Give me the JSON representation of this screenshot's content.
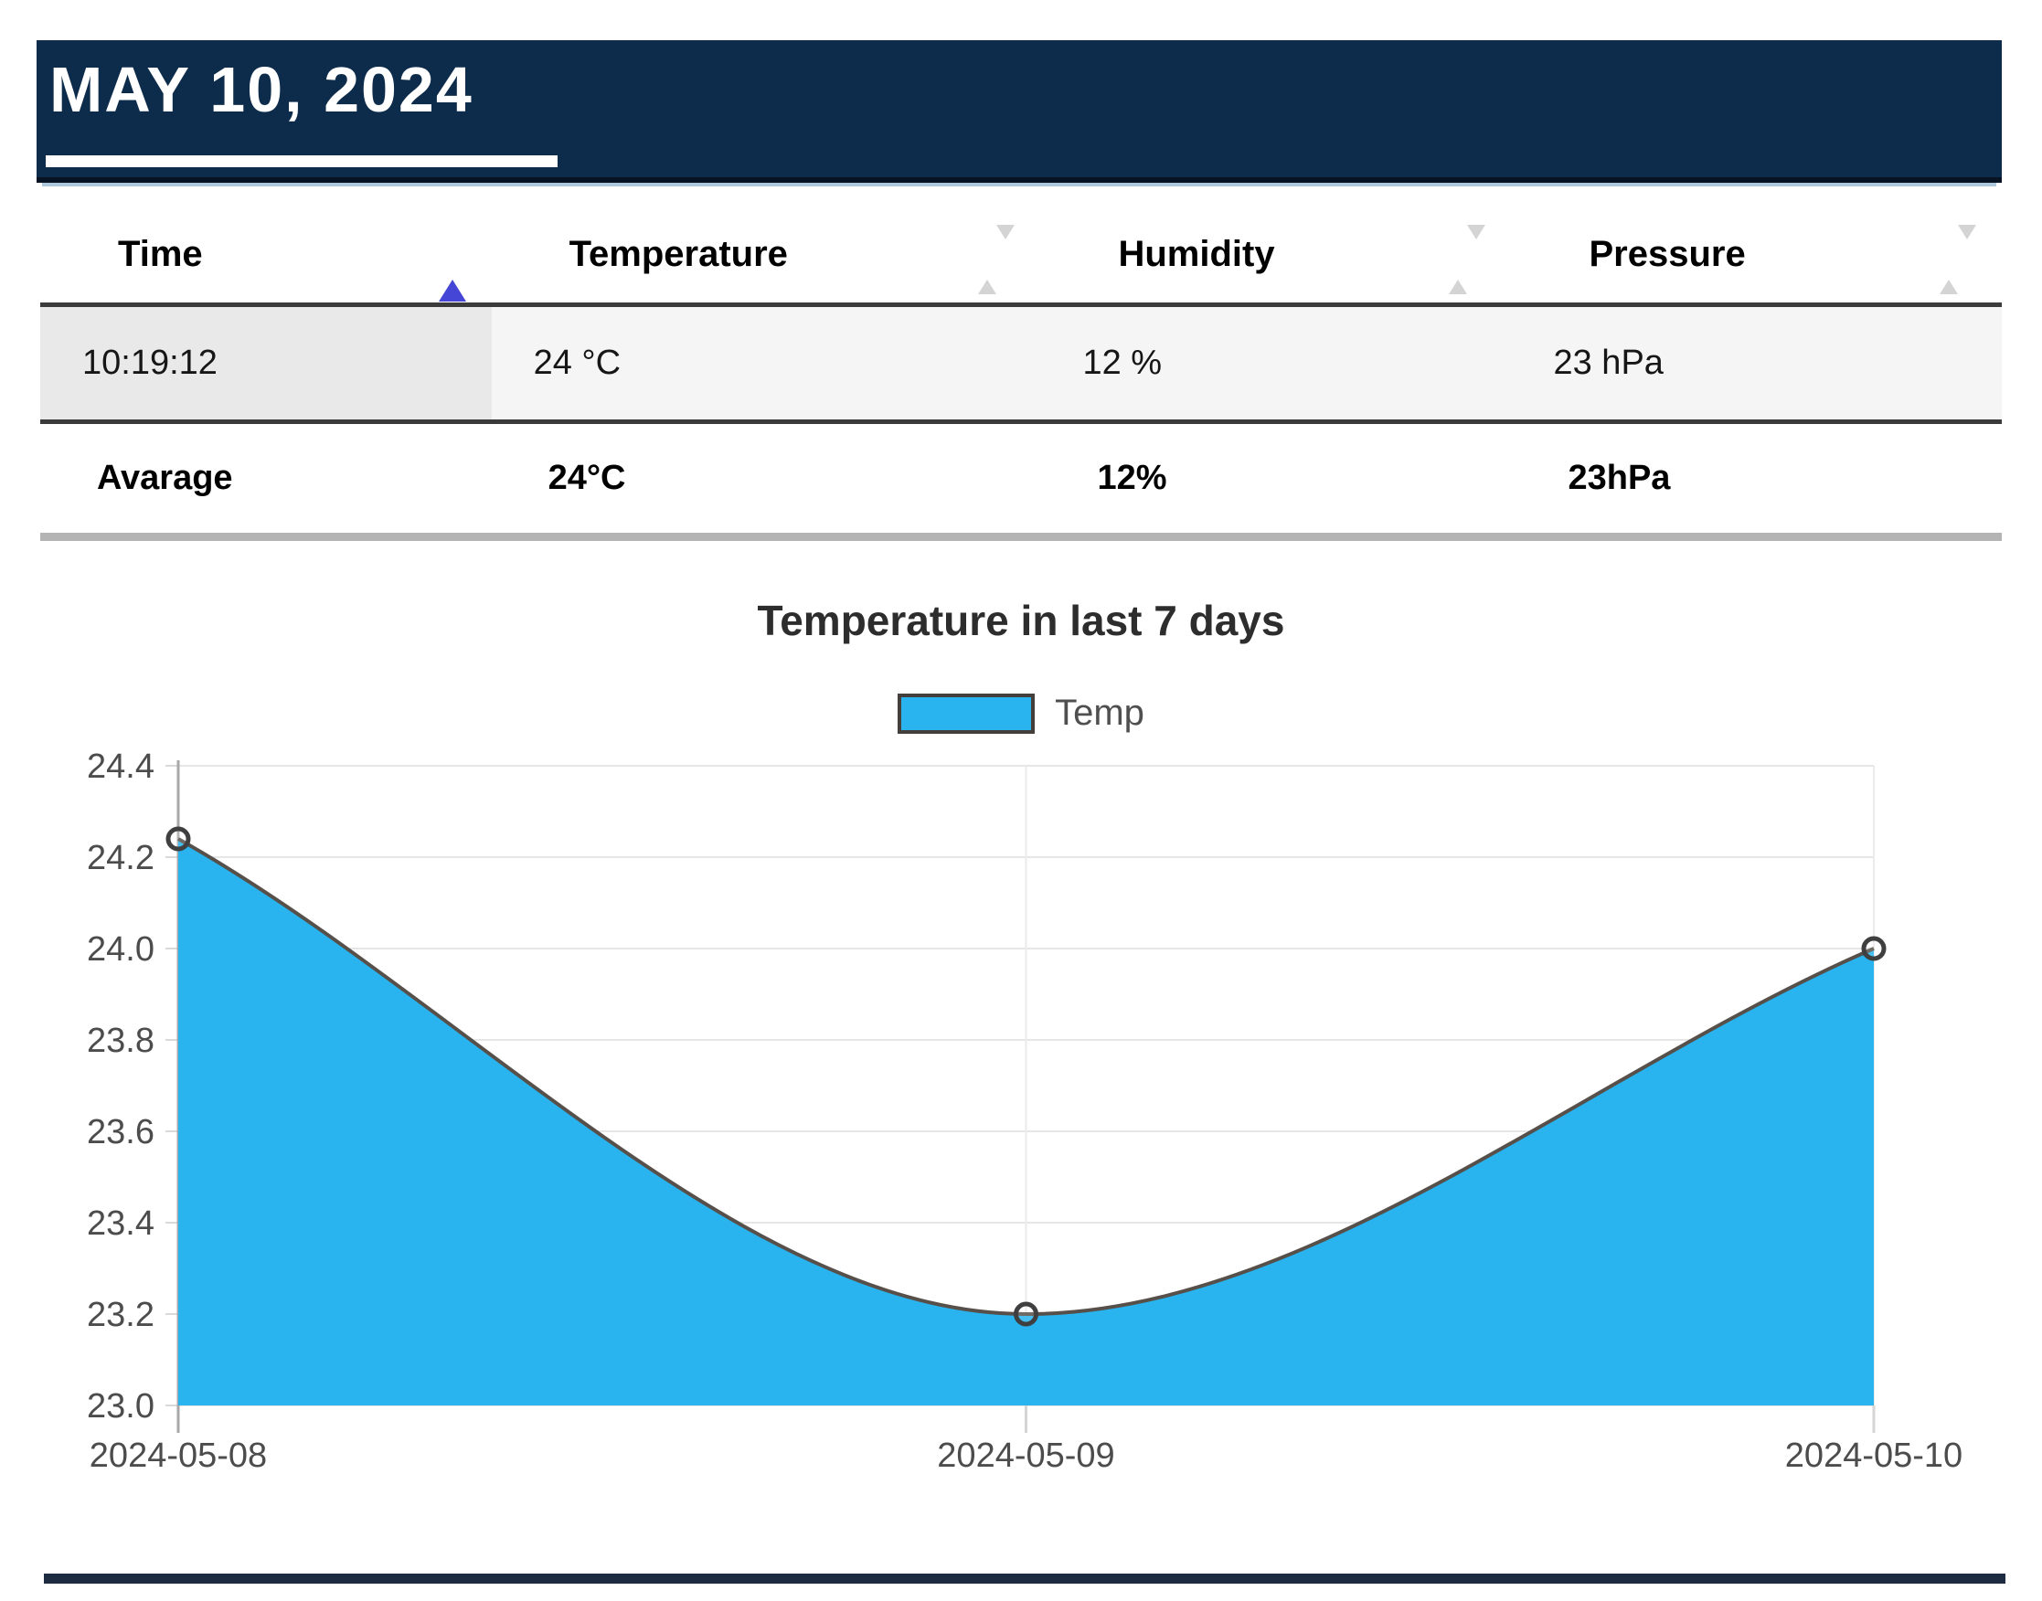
{
  "header": {
    "date_title": "MAY 10, 2024"
  },
  "table": {
    "columns": [
      {
        "label": "Time",
        "sort_state": "ascending"
      },
      {
        "label": "Temperature",
        "sort_state": "none"
      },
      {
        "label": "Humidity",
        "sort_state": "none"
      },
      {
        "label": "Pressure",
        "sort_state": "none"
      }
    ],
    "rows": [
      [
        "10:19:12",
        "24 °C",
        "12 %",
        "23 hPa"
      ]
    ],
    "average_row": [
      "Avarage",
      "24°C",
      "12%",
      "23hPa"
    ]
  },
  "chart_data": {
    "type": "area",
    "title": "Temperature in last 7 days",
    "legend": [
      {
        "label": "Temp",
        "fill": "#29b4ef",
        "border": "#443f3b"
      }
    ],
    "legend_position": "top",
    "x": [
      "2024-05-08",
      "2024-05-09",
      "2024-05-10"
    ],
    "series": [
      {
        "name": "Temp",
        "values": [
          24.24,
          23.2,
          24.0
        ]
      }
    ],
    "ylim": [
      23.0,
      24.4
    ],
    "yticks": [
      "24.4",
      "24.2",
      "24.0",
      "23.8",
      "23.6",
      "23.4",
      "23.2",
      "23.0"
    ],
    "grid": true,
    "colors": {
      "area_fill": "#29b4ef",
      "line": "#57504a",
      "point_border": "#3f3f3f",
      "grid": "#e6e6e6"
    }
  }
}
